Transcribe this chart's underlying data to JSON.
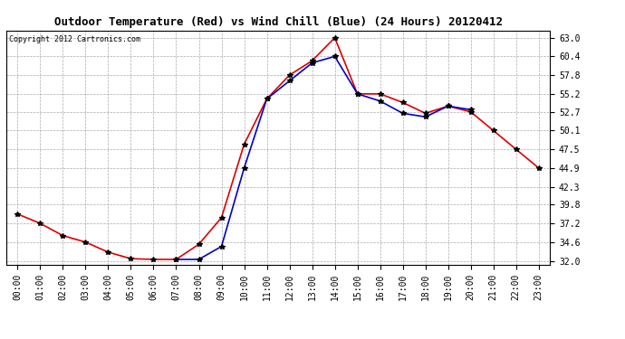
{
  "title": "Outdoor Temperature (Red) vs Wind Chill (Blue) (24 Hours) 20120412",
  "copyright": "Copyright 2012 Cartronics.com",
  "background_color": "#ffffff",
  "plot_bg_color": "#ffffff",
  "grid_color": "#aaaaaa",
  "x_labels": [
    "00:00",
    "01:00",
    "02:00",
    "03:00",
    "04:00",
    "05:00",
    "06:00",
    "07:00",
    "08:00",
    "09:00",
    "10:00",
    "11:00",
    "12:00",
    "13:00",
    "14:00",
    "15:00",
    "16:00",
    "17:00",
    "18:00",
    "19:00",
    "20:00",
    "21:00",
    "22:00",
    "23:00"
  ],
  "y_ticks": [
    32.0,
    34.6,
    37.2,
    39.8,
    42.3,
    44.9,
    47.5,
    50.1,
    52.7,
    55.2,
    57.8,
    60.4,
    63.0
  ],
  "temp_red": [
    38.5,
    37.2,
    35.5,
    34.6,
    33.2,
    32.3,
    32.2,
    32.2,
    34.3,
    38.0,
    48.2,
    54.5,
    57.8,
    59.8,
    63.0,
    55.2,
    55.2,
    54.0,
    52.5,
    53.5,
    52.7,
    50.1,
    47.5,
    44.9
  ],
  "wind_chill_blue": [
    null,
    null,
    null,
    null,
    null,
    null,
    null,
    32.2,
    32.2,
    34.0,
    44.9,
    54.5,
    57.0,
    59.5,
    60.4,
    55.2,
    54.2,
    52.5,
    52.0,
    53.5,
    53.0,
    null,
    null,
    null
  ],
  "red_color": "#dd0000",
  "blue_color": "#0000cc",
  "marker_color": "#000000",
  "marker_size": 4,
  "ylim": [
    31.5,
    64.0
  ],
  "title_fontsize": 9,
  "copyright_fontsize": 6,
  "tick_fontsize": 7
}
